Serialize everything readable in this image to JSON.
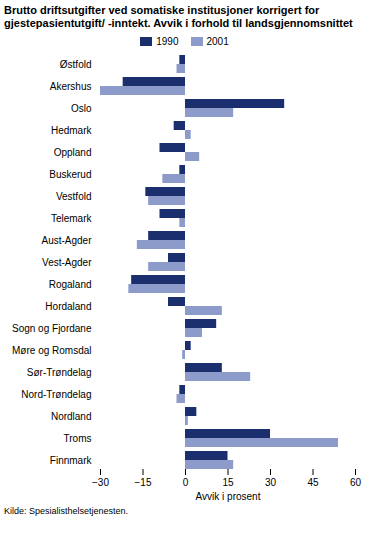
{
  "chart_data": {
    "type": "bar",
    "orientation": "horizontal",
    "title": "Brutto driftsutgifter ved somatiske institusjoner korrigert for gjestepasientutgift/ -inntekt. Avvik i forhold til landsgjennomsnittet",
    "categories": [
      "Østfold",
      "Akershus",
      "Oslo",
      "Hedmark",
      "Oppland",
      "Buskerud",
      "Vestfold",
      "Telemark",
      "Aust-Agder",
      "Vest-Agder",
      "Rogaland",
      "Hordaland",
      "Sogn og Fjordane",
      "Møre og Romsdal",
      "Sør-Trøndelag",
      "Nord-Trøndelag",
      "Nordland",
      "Troms",
      "Finnmark"
    ],
    "series": [
      {
        "name": "1990",
        "color": "#1b2e6e",
        "values": [
          -2,
          -22,
          35,
          -4,
          -9,
          -2,
          -14,
          -9,
          -13,
          -6,
          -19,
          -6,
          11,
          2,
          13,
          -2,
          4,
          30,
          15
        ]
      },
      {
        "name": "2001",
        "color": "#8d9bcb",
        "values": [
          -3,
          -30,
          17,
          2,
          5,
          -8,
          -13,
          -2,
          -17,
          -13,
          -20,
          13,
          6,
          -1,
          23,
          -3,
          1,
          54,
          17
        ]
      }
    ],
    "xlabel": "Avvik i prosent",
    "xlim": [
      -30,
      60
    ],
    "xticks": [
      -30,
      -15,
      0,
      15,
      30,
      45,
      60
    ],
    "legend": "top",
    "source": "Kilde: Spesialisthelsetjenesten."
  }
}
